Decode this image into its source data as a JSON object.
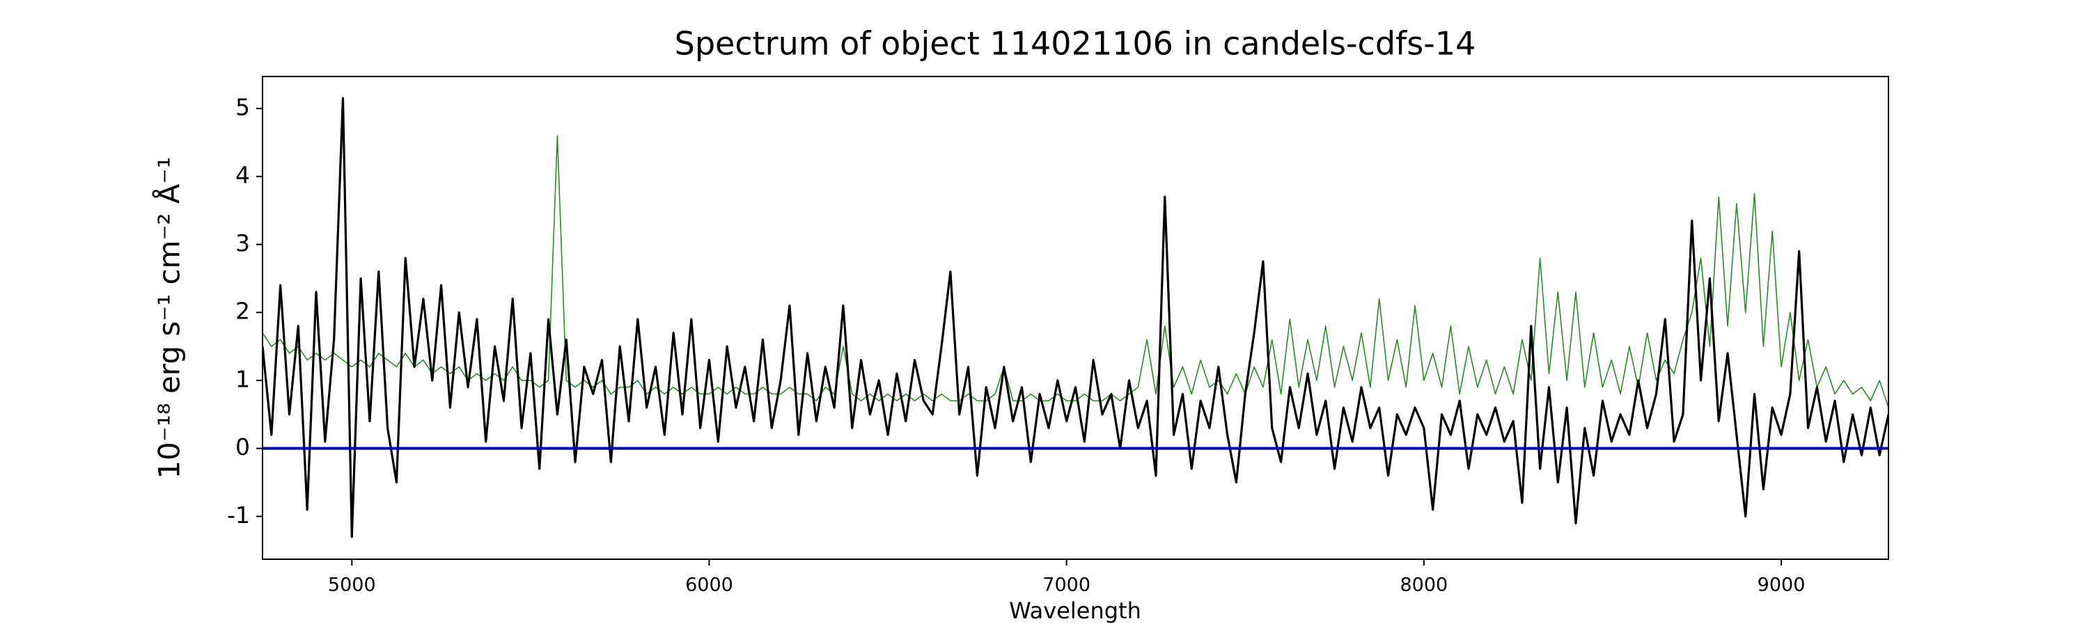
{
  "chart_data": {
    "type": "line",
    "title": "Spectrum of object 114021106 in candels-cdfs-14",
    "x_label": "Wavelength",
    "y_label": "10⁻¹⁸ erg s⁻¹ cm⁻² Å⁻¹",
    "xlim": [
      4750,
      9300
    ],
    "xticks": [
      5000,
      6000,
      7000,
      8000,
      9000
    ],
    "ylim": [
      -1.63,
      5.47
    ],
    "yticks": [
      -1,
      0,
      1,
      2,
      3,
      4,
      5
    ],
    "hlines": [
      {
        "value": 0,
        "color": "#0000cc"
      }
    ],
    "x": [
      4750,
      4775,
      4800,
      4825,
      4850,
      4875,
      4900,
      4925,
      4950,
      4975,
      5000,
      5025,
      5050,
      5075,
      5100,
      5125,
      5150,
      5175,
      5200,
      5225,
      5250,
      5275,
      5300,
      5325,
      5350,
      5375,
      5400,
      5425,
      5450,
      5475,
      5500,
      5525,
      5550,
      5575,
      5600,
      5625,
      5650,
      5675,
      5700,
      5725,
      5750,
      5775,
      5800,
      5825,
      5850,
      5875,
      5900,
      5925,
      5950,
      5975,
      6000,
      6025,
      6050,
      6075,
      6100,
      6125,
      6150,
      6175,
      6200,
      6225,
      6250,
      6275,
      6300,
      6325,
      6350,
      6375,
      6400,
      6425,
      6450,
      6475,
      6500,
      6525,
      6550,
      6575,
      6600,
      6625,
      6650,
      6675,
      6700,
      6725,
      6750,
      6775,
      6800,
      6825,
      6850,
      6875,
      6900,
      6925,
      6950,
      6975,
      7000,
      7025,
      7050,
      7075,
      7100,
      7125,
      7150,
      7175,
      7200,
      7225,
      7250,
      7275,
      7300,
      7325,
      7350,
      7375,
      7400,
      7425,
      7450,
      7475,
      7500,
      7525,
      7550,
      7575,
      7600,
      7625,
      7650,
      7675,
      7700,
      7725,
      7750,
      7775,
      7800,
      7825,
      7850,
      7875,
      7900,
      7925,
      7950,
      7975,
      8000,
      8025,
      8050,
      8075,
      8100,
      8125,
      8150,
      8175,
      8200,
      8225,
      8250,
      8275,
      8300,
      8325,
      8350,
      8375,
      8400,
      8425,
      8450,
      8475,
      8500,
      8525,
      8550,
      8575,
      8600,
      8625,
      8650,
      8675,
      8700,
      8725,
      8750,
      8775,
      8800,
      8825,
      8850,
      8875,
      8900,
      8925,
      8950,
      8975,
      9000,
      9025,
      9050,
      9075,
      9100,
      9125,
      9150,
      9175,
      9200,
      9225,
      9250,
      9275,
      9300
    ],
    "series": [
      {
        "color": "#2a8a2a",
        "values": [
          1.7,
          1.5,
          1.6,
          1.4,
          1.5,
          1.3,
          1.4,
          1.3,
          1.4,
          1.3,
          1.2,
          1.3,
          1.2,
          1.4,
          1.3,
          1.2,
          1.4,
          1.2,
          1.3,
          1.1,
          1.2,
          1.1,
          1.2,
          1.0,
          1.1,
          1.0,
          1.1,
          1.0,
          1.2,
          1.0,
          1.0,
          0.9,
          1.0,
          4.6,
          1.0,
          0.9,
          1.0,
          0.9,
          1.0,
          0.8,
          0.9,
          0.9,
          1.0,
          0.8,
          0.9,
          0.8,
          0.9,
          0.8,
          0.9,
          0.8,
          0.8,
          0.9,
          0.8,
          0.9,
          0.8,
          0.8,
          0.9,
          0.8,
          0.8,
          0.9,
          0.8,
          0.8,
          0.7,
          0.9,
          0.8,
          1.5,
          0.8,
          0.7,
          0.8,
          0.7,
          0.8,
          0.7,
          0.8,
          0.7,
          0.8,
          0.7,
          0.8,
          0.7,
          0.7,
          0.8,
          0.7,
          0.7,
          0.8,
          1.2,
          0.7,
          0.7,
          0.8,
          0.7,
          0.7,
          0.8,
          0.7,
          0.7,
          0.8,
          0.7,
          0.7,
          0.8,
          0.7,
          0.8,
          0.9,
          1.6,
          0.8,
          1.8,
          0.9,
          1.2,
          0.8,
          1.3,
          0.9,
          1.0,
          0.8,
          1.1,
          0.8,
          1.2,
          0.9,
          1.6,
          0.8,
          1.9,
          0.9,
          1.6,
          1.0,
          1.8,
          0.9,
          1.5,
          1.0,
          1.7,
          0.9,
          2.2,
          1.0,
          1.6,
          0.9,
          2.1,
          1.0,
          1.4,
          0.9,
          1.8,
          0.8,
          1.5,
          0.9,
          1.3,
          0.8,
          1.2,
          0.8,
          1.6,
          1.0,
          2.8,
          1.1,
          2.3,
          1.0,
          2.3,
          0.9,
          1.7,
          0.9,
          1.3,
          0.8,
          1.5,
          0.9,
          1.7,
          1.0,
          1.3,
          1.1,
          1.6,
          2.0,
          2.8,
          1.5,
          3.7,
          1.8,
          3.6,
          2.0,
          3.75,
          1.5,
          3.2,
          1.2,
          2.0,
          1.0,
          1.6,
          0.9,
          1.2,
          0.8,
          1.0,
          0.8,
          0.9,
          0.7,
          1.0,
          0.6
        ]
      },
      {
        "color": "#000000",
        "values": [
          1.5,
          0.2,
          2.4,
          0.5,
          1.8,
          -0.9,
          2.3,
          0.1,
          1.6,
          5.15,
          -1.3,
          2.5,
          0.4,
          2.6,
          0.3,
          -0.5,
          2.8,
          1.2,
          2.2,
          1.0,
          2.4,
          0.6,
          2.0,
          0.9,
          1.9,
          0.1,
          1.5,
          0.7,
          2.2,
          0.3,
          1.4,
          -0.3,
          1.9,
          0.5,
          1.6,
          -0.2,
          1.2,
          0.8,
          1.3,
          -0.2,
          1.5,
          0.4,
          1.9,
          0.6,
          1.2,
          0.2,
          1.7,
          0.5,
          1.9,
          0.3,
          1.3,
          0.1,
          1.5,
          0.6,
          1.2,
          0.4,
          1.6,
          0.3,
          1.0,
          2.1,
          0.2,
          1.4,
          0.4,
          1.2,
          0.6,
          2.1,
          0.3,
          1.3,
          0.5,
          1.0,
          0.2,
          1.1,
          0.4,
          1.3,
          0.7,
          0.5,
          1.5,
          2.6,
          0.5,
          1.2,
          -0.4,
          0.9,
          0.3,
          1.2,
          0.4,
          0.9,
          -0.2,
          0.8,
          0.3,
          1.0,
          0.4,
          0.9,
          0.1,
          1.3,
          0.5,
          0.8,
          0.0,
          1.0,
          0.3,
          0.7,
          -0.4,
          3.7,
          0.2,
          0.8,
          -0.3,
          0.7,
          0.3,
          1.2,
          0.2,
          -0.5,
          0.8,
          1.7,
          2.75,
          0.3,
          -0.2,
          0.9,
          0.3,
          1.1,
          0.2,
          0.7,
          -0.3,
          0.6,
          0.1,
          0.9,
          0.3,
          0.6,
          -0.4,
          0.5,
          0.2,
          0.6,
          0.3,
          -0.9,
          0.5,
          0.2,
          0.7,
          -0.3,
          0.5,
          0.2,
          0.6,
          0.1,
          0.4,
          -0.8,
          1.8,
          -0.3,
          0.9,
          -0.5,
          0.6,
          -1.1,
          0.3,
          -0.4,
          0.7,
          0.1,
          0.5,
          0.2,
          1.0,
          0.3,
          0.8,
          1.9,
          0.1,
          0.5,
          3.35,
          1.0,
          2.5,
          0.4,
          1.4,
          0.2,
          -1.0,
          0.8,
          -0.6,
          0.6,
          0.2,
          0.8,
          2.9,
          0.3,
          0.9,
          0.1,
          0.7,
          -0.2,
          0.5,
          -0.1,
          0.6,
          -0.1,
          0.5
        ]
      }
    ]
  }
}
